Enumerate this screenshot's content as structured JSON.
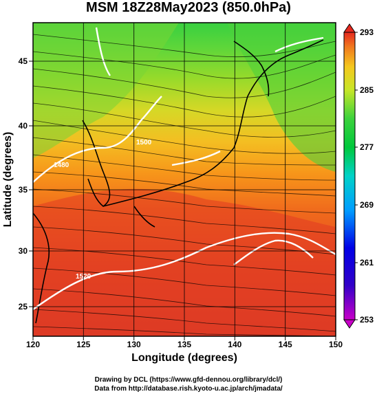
{
  "title": "MSM 18Z28May2023 (850.0hPa)",
  "x_axis": {
    "label": "Longitude (degrees)",
    "ticks": [
      "120",
      "125",
      "130",
      "135",
      "140",
      "145",
      "150"
    ]
  },
  "y_axis": {
    "label": "Latitude  (degrees)",
    "ticks": [
      "25",
      "30",
      "35",
      "40",
      "45"
    ]
  },
  "colorbar": {
    "ticks": [
      "293",
      "285",
      "277",
      "269",
      "261",
      "253"
    ],
    "range": [
      253,
      293
    ]
  },
  "contours": {
    "labels": [
      "1480",
      "1500",
      "1520"
    ]
  },
  "credits": {
    "line1": "Drawing by DCL (https://www.gfd-dennou.org/library/dcl/)",
    "line2": "Data from http://database.rish.kyoto-u.ac.jp/arch/jmadata/"
  },
  "chart_data": {
    "type": "heatmap",
    "variable": "temperature (K) with wind streamlines and geopotential height contours",
    "xlim": [
      120,
      150
    ],
    "ylim": [
      22.5,
      48
    ],
    "colorbar_range": [
      253,
      293
    ],
    "contour_labels": [
      1480,
      1500,
      1520
    ]
  }
}
